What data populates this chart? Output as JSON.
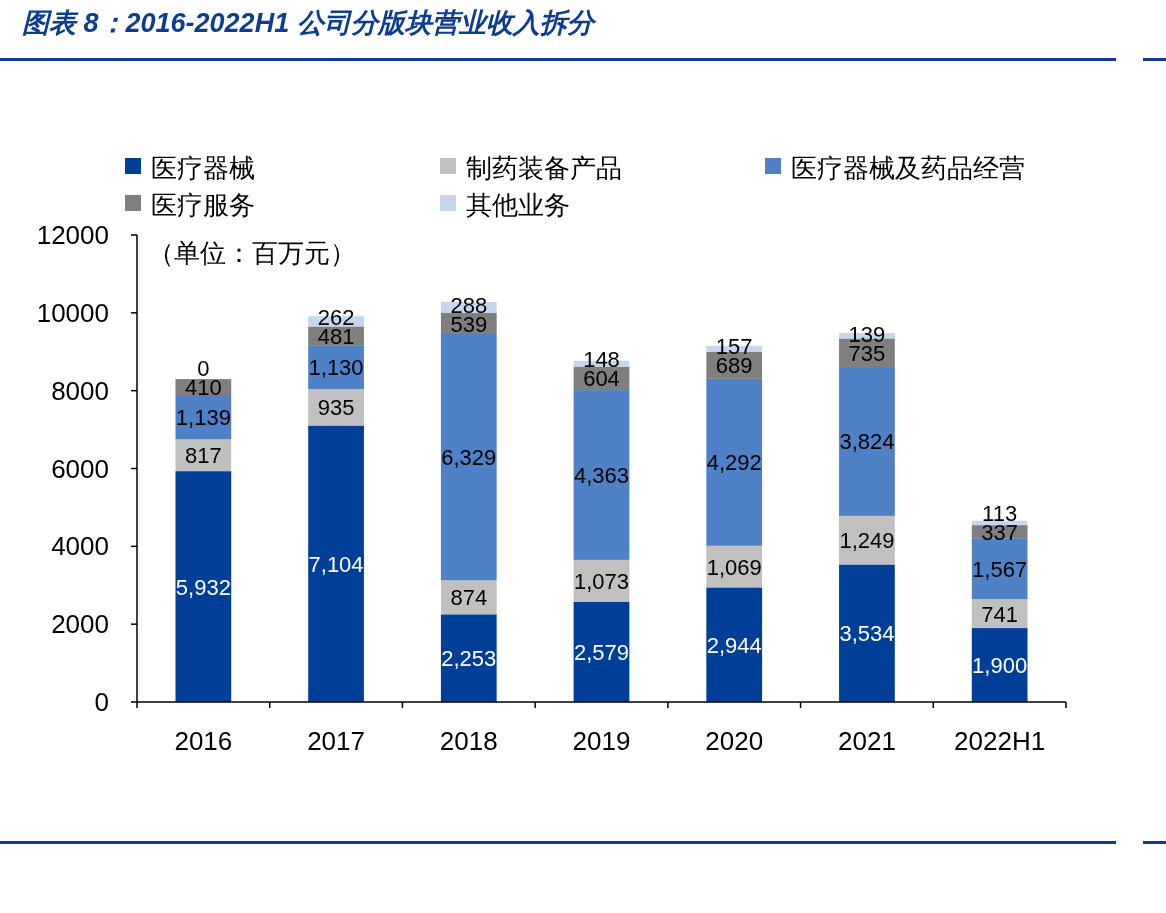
{
  "chart_data": {
    "type": "bar",
    "stacked": true,
    "title": "图表 8：2016-2022H1 公司分版块营业收入拆分",
    "annotations": [
      "（单位：百万元）"
    ],
    "categories": [
      "2016",
      "2017",
      "2018",
      "2019",
      "2020",
      "2021",
      "2022H1"
    ],
    "ylim": [
      0,
      12000
    ],
    "yticks": [
      0,
      2000,
      4000,
      6000,
      8000,
      10000,
      12000
    ],
    "legend": "top",
    "series": [
      {
        "name": "医疗器械",
        "color": "#003f98",
        "values": [
          5932,
          7104,
          2253,
          2579,
          2944,
          3534,
          1900
        ],
        "value_labels": [
          "5,932",
          "7,104",
          "2,253",
          "2,579",
          "2,944",
          "3,534",
          "1,900"
        ]
      },
      {
        "name": "制药装备产品",
        "color": "#c0c0c0",
        "values": [
          817,
          935,
          874,
          1073,
          1069,
          1249,
          741
        ],
        "value_labels": [
          "817",
          "935",
          "874",
          "1,073",
          "1,069",
          "1,249",
          "741"
        ]
      },
      {
        "name": "医疗器械及药品经营",
        "color": "#4f81c7",
        "values": [
          1139,
          1130,
          6329,
          4363,
          4292,
          3824,
          1567
        ],
        "value_labels": [
          "1,139",
          "1,130",
          "6,329",
          "4,363",
          "4,292",
          "3,824",
          "1,567"
        ]
      },
      {
        "name": "医疗服务",
        "color": "#7f7f7f",
        "values": [
          410,
          481,
          539,
          604,
          689,
          735,
          337
        ],
        "value_labels": [
          "410",
          "481",
          "539",
          "604",
          "689",
          "735",
          "337"
        ]
      },
      {
        "name": "其他业务",
        "color": "#c6d6ee",
        "values": [
          0,
          262,
          288,
          148,
          157,
          139,
          113
        ],
        "value_labels": [
          "0",
          "262",
          "288",
          "148",
          "157",
          "139",
          "113"
        ]
      }
    ]
  }
}
